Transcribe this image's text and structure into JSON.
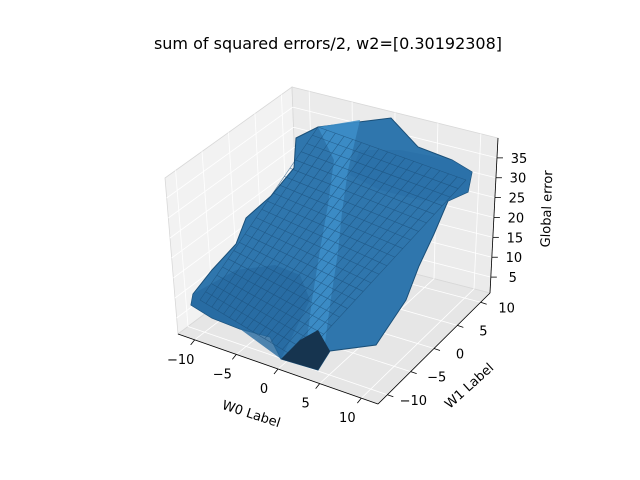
{
  "chart_data": {
    "type": "surface",
    "title": "sum of squared errors/2, w2=[0.30192308]",
    "xlabel": "W0 Label",
    "ylabel": "W1 Label",
    "zlabel": "Global error",
    "xlim": [
      -12,
      12
    ],
    "ylim": [
      -12,
      12
    ],
    "zlim": [
      1,
      40
    ],
    "x_ticks": [
      -10,
      -5,
      0,
      5,
      10
    ],
    "y_ticks": [
      -10,
      -5,
      0,
      5,
      10
    ],
    "z_ticks": [
      5,
      10,
      15,
      20,
      25,
      30,
      35
    ],
    "x_tick_labels": [
      "−10",
      "−5",
      "0",
      "5",
      "10"
    ],
    "y_tick_labels": [
      "−10",
      "−5",
      "0",
      "5",
      "10"
    ],
    "z_tick_labels": [
      "5",
      "10",
      "15",
      "20",
      "25",
      "30",
      "35"
    ],
    "grid": true,
    "surface_color": "#1f77b4",
    "surface_corner_values": [
      {
        "w0": -12,
        "w1": -12,
        "error": 12
      },
      {
        "w0": -12,
        "w1": 12,
        "error": 20
      },
      {
        "w0": 12,
        "w1": 12,
        "error": 28
      },
      {
        "w0": 12,
        "w1": -12,
        "error": 20
      },
      {
        "w0": 0,
        "w1": 0,
        "error": 3
      }
    ]
  }
}
